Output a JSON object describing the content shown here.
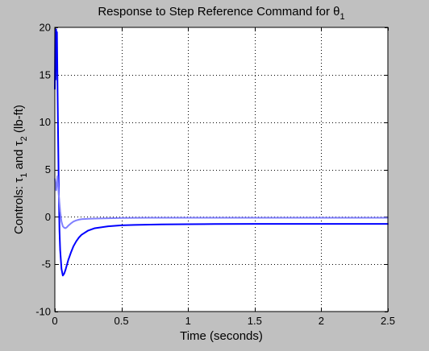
{
  "chart_data": {
    "type": "line",
    "title": "Response to Step Reference Command for θ",
    "title_subscript": "1",
    "xlabel": "Time (seconds)",
    "ylabel": {
      "prefix": "Controls: ",
      "tau1": "τ",
      "tau1_sub": "1",
      "middle": " and ",
      "tau2": "τ",
      "tau2_sub": "2",
      "suffix": " (lb-ft)"
    },
    "xlim": [
      0,
      2.5
    ],
    "ylim": [
      -10,
      20
    ],
    "xticks": [
      0,
      0.5,
      1,
      1.5,
      2,
      2.5
    ],
    "xtick_labels": [
      "0",
      "0.5",
      "1",
      "1.5",
      "2",
      "2.5"
    ],
    "yticks": [
      -10,
      -5,
      0,
      5,
      10,
      15,
      20
    ],
    "ytick_labels": [
      "-10",
      "-5",
      "0",
      "5",
      "10",
      "15",
      "20"
    ],
    "grid": true,
    "grid_style": "dotted",
    "background_color": "#c0c0c0",
    "plot_background_color": "#ffffff",
    "series": [
      {
        "color": "#0000ff",
        "line_width": 2,
        "x": [
          0,
          0.003,
          0.006,
          0.01,
          0.013,
          0.016,
          0.02,
          0.025,
          0.03,
          0.035,
          0.04,
          0.05,
          0.06,
          0.07,
          0.08,
          0.09,
          0.1,
          0.12,
          0.14,
          0.16,
          0.18,
          0.2,
          0.25,
          0.3,
          0.4,
          0.5,
          0.6,
          0.8,
          1.0,
          1.2,
          1.5,
          2.0,
          2.5
        ],
        "y": [
          13.5,
          19.5,
          14.5,
          19.8,
          16.2,
          19.5,
          14.0,
          8.0,
          2.5,
          -1.5,
          -3.5,
          -5.5,
          -6.2,
          -6.0,
          -5.6,
          -5.1,
          -4.6,
          -3.8,
          -3.1,
          -2.6,
          -2.2,
          -1.9,
          -1.45,
          -1.2,
          -1.0,
          -0.9,
          -0.85,
          -0.8,
          -0.78,
          -0.76,
          -0.75,
          -0.75,
          -0.75
        ]
      },
      {
        "color": "#8080ff",
        "line_width": 2,
        "x": [
          0,
          0.01,
          0.02,
          0.03,
          0.04,
          0.05,
          0.06,
          0.07,
          0.08,
          0.09,
          0.1,
          0.12,
          0.14,
          0.16,
          0.18,
          0.2,
          0.25,
          0.3,
          0.4,
          0.5,
          0.7,
          1.0,
          1.5,
          2.0,
          2.5
        ],
        "y": [
          4.0,
          2.8,
          4.3,
          2.2,
          0.6,
          -0.5,
          -1.0,
          -1.15,
          -1.2,
          -1.1,
          -0.95,
          -0.7,
          -0.5,
          -0.38,
          -0.3,
          -0.25,
          -0.2,
          -0.18,
          -0.15,
          -0.12,
          -0.1,
          -0.1,
          -0.1,
          -0.1,
          -0.1
        ]
      }
    ]
  }
}
